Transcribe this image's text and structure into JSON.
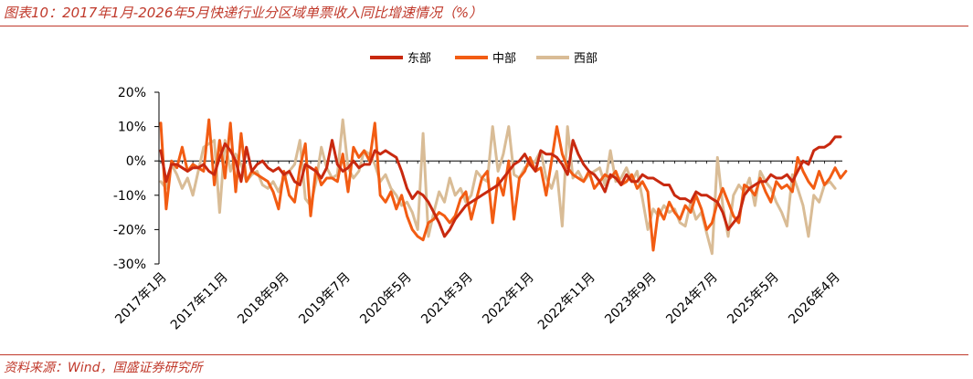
{
  "header": {
    "title": "图表10：2017年1月-2026年5月快递行业分区域单票收入同比增速情况（%）"
  },
  "footer": {
    "source": "资料来源：Wind，国盛证券研究所"
  },
  "colors": {
    "east": "#c8290f",
    "central": "#f25c13",
    "west": "#d9bc96",
    "accent": "#c0392b"
  },
  "chart_data": {
    "type": "line",
    "ylim": [
      -30,
      20
    ],
    "yticks": [
      20,
      10,
      0,
      -10,
      -20,
      -30
    ],
    "ytick_labels": [
      "20%",
      "10%",
      "0%",
      "-10%",
      "-20%",
      "-30%"
    ],
    "xticks": [
      "2017年1月",
      "2017年11月",
      "2018年9月",
      "2019年7月",
      "2020年5月",
      "2021年3月",
      "2022年1月",
      "2022年11月",
      "2023年9月",
      "2024年7月",
      "2025年5月",
      "2026年4月"
    ],
    "legend": "top-center",
    "x_start": "2017年1月",
    "x_end": "2026年5月",
    "series": [
      {
        "name": "东部",
        "color": "#c8290f",
        "values": [
          3,
          -6,
          -1,
          -1,
          -2,
          -3,
          -2,
          -2,
          -1,
          -3,
          -4,
          1,
          5,
          3,
          0,
          -6,
          4,
          -3,
          -1,
          0,
          -2,
          -3,
          -2,
          -4,
          -3,
          -6,
          -7,
          -1,
          -2,
          -3,
          -5,
          -2,
          6,
          -1,
          -3,
          -2,
          0,
          -2,
          -1,
          -1,
          3,
          2,
          3,
          2,
          1,
          -3,
          -8,
          -11,
          -9,
          -10,
          -12,
          -15,
          -18,
          -22,
          -20,
          -17,
          -15,
          -13,
          -12,
          -11,
          -10,
          -9,
          -8,
          -7,
          -5,
          -3,
          -1,
          0,
          2,
          -1,
          -3,
          3,
          2,
          2,
          1,
          -1,
          -4,
          6,
          2,
          -1,
          -3,
          -4,
          -6,
          -9,
          -4,
          -5,
          -7,
          -4,
          -6,
          -6,
          -4,
          -5,
          -5,
          -6,
          -7,
          -7,
          -10,
          -11,
          -11,
          -12,
          -9,
          -10,
          -10,
          -11,
          -12,
          -15,
          -20,
          -18,
          -16,
          -10,
          -8,
          -7,
          -6,
          -6,
          -4,
          -5,
          -5,
          -4,
          -6,
          -3,
          0,
          -1,
          3,
          4,
          4,
          5,
          7,
          7
        ]
      },
      {
        "name": "中部",
        "color": "#f25c13",
        "values": [
          11,
          -14,
          0,
          -2,
          4,
          -3,
          -1,
          -2,
          -3,
          12,
          -7,
          6,
          -5,
          11,
          -9,
          8,
          -6,
          -3,
          -4,
          -5,
          -6,
          -9,
          -14,
          -3,
          -10,
          -12,
          -2,
          5,
          -16,
          -2,
          -7,
          -5,
          -5,
          -6,
          2,
          -9,
          4,
          1,
          3,
          0,
          11,
          -10,
          -12,
          -9,
          -14,
          -10,
          -16,
          -20,
          -22,
          -23,
          -18,
          -17,
          -15,
          -16,
          -18,
          -16,
          -11,
          -9,
          -17,
          -11,
          -5,
          -3,
          -18,
          -5,
          -10,
          0,
          -17,
          -5,
          -3,
          1,
          -3,
          -2,
          -10,
          0,
          10,
          2,
          -2,
          -4,
          -5,
          -6,
          -3,
          -8,
          -6,
          -4,
          -5,
          -3,
          -7,
          -6,
          -4,
          -8,
          -6,
          -9,
          -26,
          -14,
          -17,
          -12,
          -15,
          -17,
          -13,
          -15,
          -10,
          -14,
          -20,
          -18,
          -12,
          -8,
          -12,
          -16,
          -18,
          -7,
          -8,
          -10,
          -5,
          -9,
          -12,
          -6,
          -8,
          -7,
          -9,
          1,
          -3,
          -6,
          -8,
          -3,
          -7,
          -5,
          -2,
          -5,
          -3
        ]
      },
      {
        "name": "西部",
        "color": "#d9bc96",
        "values": [
          -6,
          -8,
          -1,
          -4,
          -8,
          -5,
          -10,
          -3,
          4,
          5,
          6,
          -15,
          6,
          -3,
          2,
          -1,
          -6,
          -4,
          -3,
          -7,
          -8,
          -6,
          -9,
          -5,
          -3,
          -1,
          6,
          -11,
          -13,
          -6,
          4,
          -2,
          -5,
          -4,
          12,
          -2,
          -5,
          -3,
          3,
          2,
          -1,
          -6,
          -4,
          -8,
          -10,
          -13,
          -12,
          -15,
          -20,
          8,
          -22,
          -15,
          -9,
          -12,
          -5,
          -10,
          -8,
          -12,
          -10,
          -3,
          -5,
          -6,
          10,
          -3,
          2,
          10,
          -4,
          -5,
          -2,
          -1,
          0,
          3,
          -5,
          -8,
          -3,
          -19,
          10,
          -5,
          -3,
          -6,
          -4,
          -3,
          -2,
          -7,
          3,
          -6,
          -5,
          -2,
          -6,
          -3,
          -11,
          -20,
          -14,
          -16,
          -13,
          -15,
          -14,
          -18,
          -19,
          -12,
          -17,
          -15,
          -21,
          -27,
          1,
          -13,
          -22,
          -10,
          -7,
          -9,
          -5,
          -13,
          -3,
          -6,
          -8,
          -12,
          -15,
          -19,
          -4,
          -8,
          -13,
          -22,
          -10,
          -12,
          -7,
          -6,
          -8
        ]
      }
    ]
  }
}
